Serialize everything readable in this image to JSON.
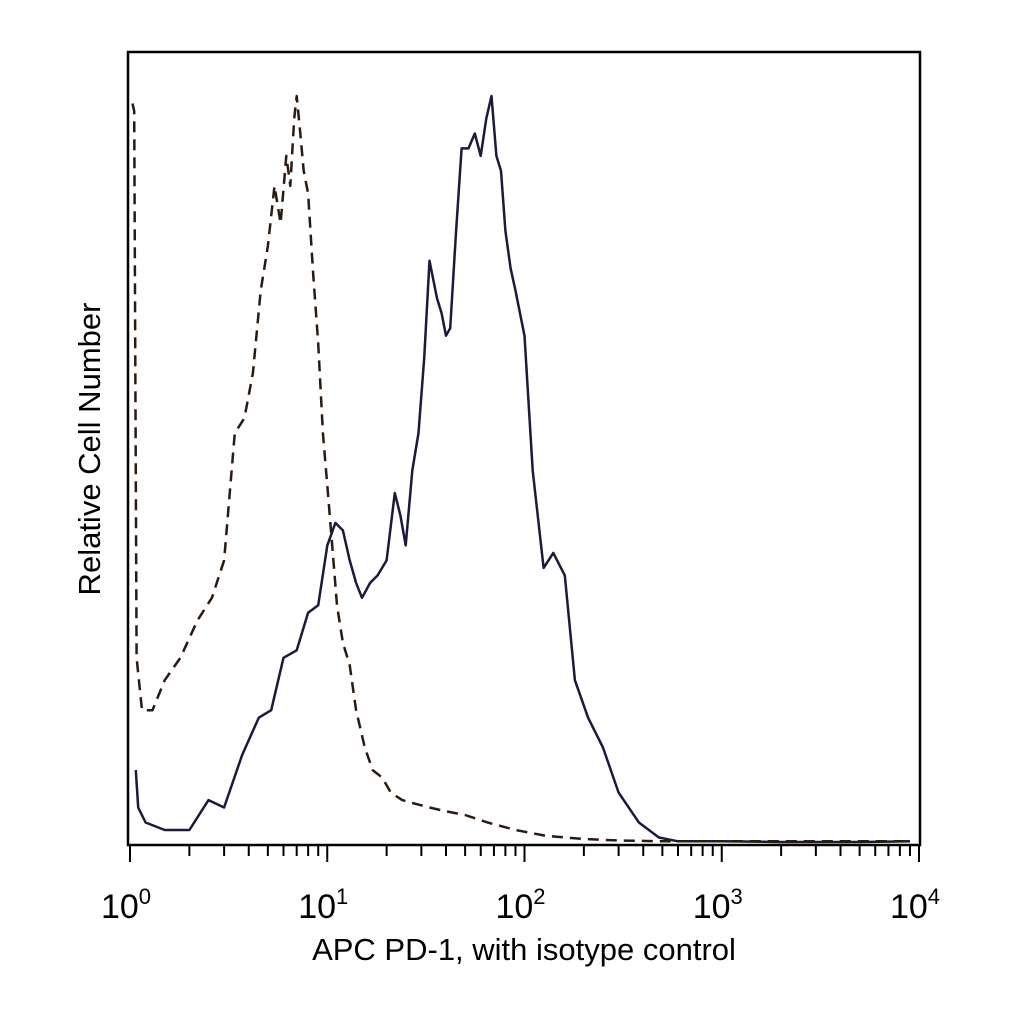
{
  "chart_data": {
    "type": "line",
    "title": "",
    "xlabel": "APC PD-1, with isotype control",
    "ylabel": "Relative Cell Number",
    "xscale": "log",
    "xlim": [
      1,
      10000
    ],
    "ylim": [
      0,
      1
    ],
    "grid": false,
    "legend": "none",
    "x_ticks": [
      {
        "base": "10",
        "exp": "0",
        "value": 1
      },
      {
        "base": "10",
        "exp": "1",
        "value": 10
      },
      {
        "base": "10",
        "exp": "2",
        "value": 100
      },
      {
        "base": "10",
        "exp": "3",
        "value": 1000
      },
      {
        "base": "10",
        "exp": "4",
        "value": 10000
      }
    ],
    "series": [
      {
        "style": "solid",
        "color": "#1a1a3a",
        "x": [
          1.07,
          1.1,
          1.2,
          1.5,
          2.0,
          2.5,
          3.0,
          3.7,
          4.5,
          5.2,
          6.0,
          7.0,
          8.0,
          9.0,
          10.0,
          11.0,
          12.0,
          13.0,
          14.0,
          15.0,
          16.5,
          18.0,
          20.0,
          22.0,
          23.5,
          25.0,
          27.0,
          29.0,
          31.0,
          33.0,
          36.0,
          38.0,
          40.0,
          42.0,
          45.0,
          48.0,
          52.0,
          56.0,
          60.0,
          64.0,
          68.0,
          72.0,
          76.0,
          80.0,
          85.0,
          90.0,
          100.0,
          110.0,
          125.0,
          140.0,
          160.0,
          180.0,
          210.0,
          250.0,
          300.0,
          380.0,
          480.0,
          600.0,
          800.0,
          1000.0,
          2000.0,
          5000.0,
          9000.0
        ],
        "y": [
          0.1,
          0.05,
          0.03,
          0.02,
          0.02,
          0.06,
          0.05,
          0.12,
          0.17,
          0.18,
          0.25,
          0.26,
          0.31,
          0.32,
          0.4,
          0.43,
          0.42,
          0.38,
          0.35,
          0.33,
          0.35,
          0.36,
          0.38,
          0.47,
          0.44,
          0.4,
          0.5,
          0.55,
          0.65,
          0.78,
          0.73,
          0.71,
          0.68,
          0.69,
          0.82,
          0.93,
          0.93,
          0.95,
          0.92,
          0.97,
          1.0,
          0.92,
          0.9,
          0.82,
          0.77,
          0.74,
          0.68,
          0.5,
          0.37,
          0.39,
          0.36,
          0.22,
          0.17,
          0.13,
          0.07,
          0.03,
          0.01,
          0.005,
          0.005,
          0.005,
          0.004,
          0.004,
          0.005
        ]
      },
      {
        "style": "dashed",
        "color": "#2a1a10",
        "x": [
          1.03,
          1.05,
          1.08,
          1.15,
          1.3,
          1.5,
          1.8,
          2.2,
          2.6,
          3.0,
          3.4,
          3.8,
          4.2,
          4.6,
          5.0,
          5.4,
          5.8,
          6.2,
          6.5,
          6.8,
          7.0,
          7.3,
          7.6,
          8.0,
          8.5,
          9.0,
          9.5,
          10.0,
          10.6,
          11.2,
          12.0,
          13.0,
          14.0,
          15.5,
          17.0,
          19.0,
          21.0,
          24.0,
          28.0,
          33.0,
          40.0,
          50.0,
          65.0,
          90.0,
          130.0,
          200.0,
          300.0,
          500.0,
          1000.0,
          3000.0,
          9000.0
        ],
        "y": [
          0.99,
          0.98,
          0.25,
          0.18,
          0.18,
          0.22,
          0.25,
          0.3,
          0.33,
          0.38,
          0.55,
          0.57,
          0.63,
          0.74,
          0.8,
          0.88,
          0.83,
          0.92,
          0.88,
          0.97,
          1.0,
          0.95,
          0.9,
          0.87,
          0.76,
          0.67,
          0.55,
          0.48,
          0.4,
          0.32,
          0.27,
          0.24,
          0.18,
          0.13,
          0.1,
          0.09,
          0.07,
          0.06,
          0.055,
          0.05,
          0.045,
          0.04,
          0.03,
          0.02,
          0.012,
          0.008,
          0.006,
          0.005,
          0.005,
          0.005,
          0.005
        ]
      }
    ]
  }
}
